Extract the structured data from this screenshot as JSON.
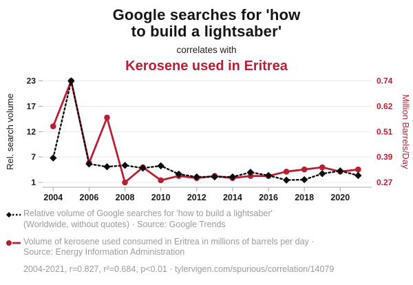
{
  "header": {
    "title_line1": "Google searches for 'how",
    "title_line2": "to build a lightsaber'",
    "connector": "correlates with",
    "subtitle": "Kerosene used in Eritrea"
  },
  "colors": {
    "search_series": "#0d0d0d",
    "kerosene_series": "#b91f32",
    "grid": "#e9e9e9",
    "axis": "#a8a8a8",
    "tick_label": "#1a1a1a",
    "legend_text": "#9b9b9b"
  },
  "chart_data": {
    "type": "line",
    "title": "Google searches for 'how to build a lightsaber' correlates with Kerosene used in Eritrea",
    "x": [
      2004,
      2005,
      2006,
      2007,
      2008,
      2009,
      2010,
      2011,
      2012,
      2013,
      2014,
      2015,
      2016,
      2017,
      2018,
      2019,
      2020,
      2021
    ],
    "x_ticks": [
      2004,
      2006,
      2008,
      2010,
      2012,
      2014,
      2016,
      2018,
      2020
    ],
    "grid": true,
    "legend_position": "bottom",
    "left_axis": {
      "title": "Rel. search volume",
      "tick_labels_top_to_bottom": [
        "23",
        "17",
        "12",
        "7",
        "1"
      ],
      "min": 1,
      "max": 23
    },
    "right_axis": {
      "title": "Million Barrels/Day",
      "tick_labels_top_to_bottom": [
        "0.74",
        "0.62",
        "0.51",
        "0.39",
        "0.27"
      ],
      "min": 0.27,
      "max": 0.74
    },
    "series": [
      {
        "name": "google-searches-lightsaber",
        "legend": "Relative volume of Google searches for 'how to build a lightsaber' (Worldwide, without quotes) · Source: Google Trends",
        "axis": "left",
        "style": "dashed",
        "marker": "diamond",
        "color": "#0d0d0d",
        "values": [
          6.3,
          23,
          5.0,
          4.4,
          4.7,
          4.1,
          4.6,
          2.8,
          2.2,
          2.2,
          2.2,
          3.2,
          2.5,
          1.5,
          1.6,
          2.9,
          3.5,
          2.5
        ]
      },
      {
        "name": "kerosene-eritrea",
        "legend": "Volume of kerosene used consumed in Eritrea in millions of barrels per day · Source: Energy Information Administration",
        "axis": "right",
        "style": "solid",
        "marker": "circle",
        "color": "#b91f32",
        "values": [
          0.53,
          0.74,
          0.36,
          0.57,
          0.27,
          0.34,
          0.28,
          0.3,
          0.29,
          0.3,
          0.29,
          0.3,
          0.3,
          0.32,
          0.33,
          0.34,
          0.32,
          0.33
        ]
      }
    ]
  },
  "legend": {
    "series1_line1": "Relative volume of Google searches for 'how to build a lightsaber'",
    "series1_line2": "(Worldwide, without quotes) · Source: Google Trends",
    "series2_line1": "Volume of kerosene used consumed in Eritrea in millions of barrels per day ·",
    "series2_line2": "Source: Energy Information Administration",
    "footer": "2004-2021, r=0.827, r²=0.684, p<0.01 · tylervigen.com/spurious/correlation/14079"
  }
}
